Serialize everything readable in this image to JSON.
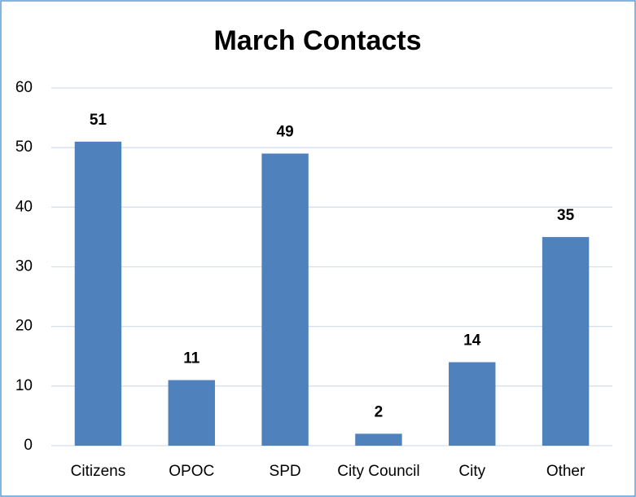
{
  "chart_data": {
    "type": "bar",
    "title": "March Contacts",
    "categories": [
      "Citizens",
      "OPOC",
      "SPD",
      "City Council",
      "City",
      "Other"
    ],
    "values": [
      51,
      11,
      49,
      2,
      14,
      35
    ],
    "color": "#4f81bd",
    "ylim": [
      0,
      60
    ],
    "yticks": [
      0,
      10,
      20,
      30,
      40,
      50,
      60
    ],
    "grid": true
  }
}
